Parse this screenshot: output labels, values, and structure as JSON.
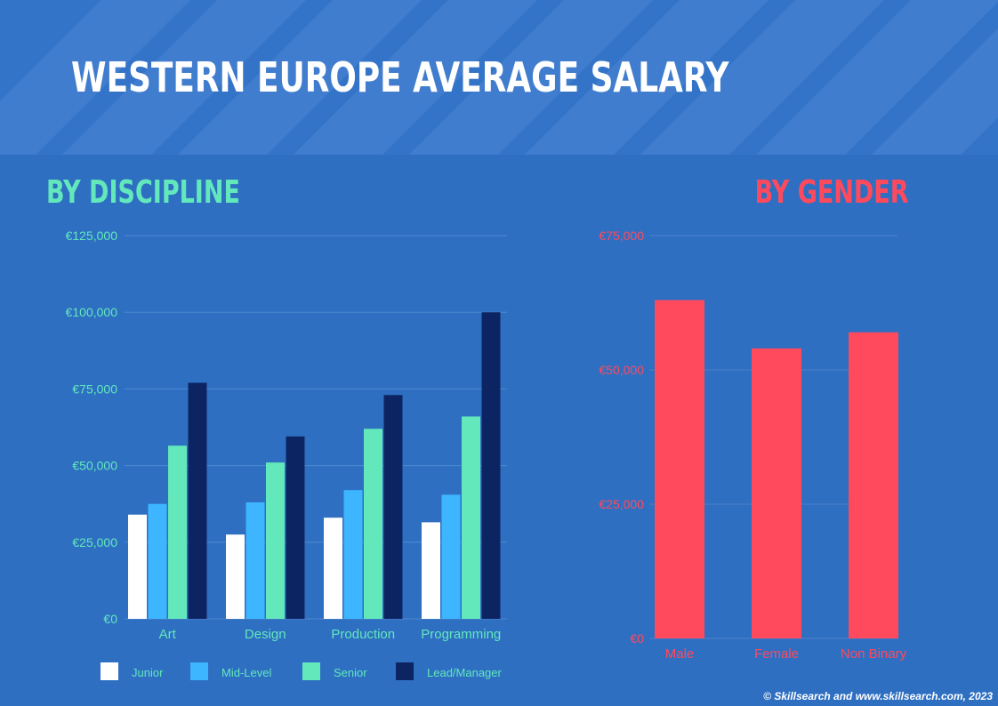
{
  "title": "WESTERN EUROPE AVERAGE SALARY",
  "colors": {
    "background": "#2e6fc2",
    "discipline_accent": "#62e8bb",
    "gender_accent": "#ff4a5e",
    "junior": "#ffffff",
    "mid_level": "#3db5ff",
    "senior": "#62e8bb",
    "lead": "#0d2463",
    "gender_bar": "#ff4a5e"
  },
  "chart_data": [
    {
      "id": "by-discipline",
      "type": "bar",
      "title": "BY DISCIPLINE",
      "categories": [
        "Art",
        "Design",
        "Production",
        "Programming"
      ],
      "series": [
        {
          "name": "Junior",
          "values": [
            34000,
            27500,
            33000,
            31500
          ]
        },
        {
          "name": "Mid-Level",
          "values": [
            37500,
            38000,
            42000,
            40500
          ]
        },
        {
          "name": "Senior",
          "values": [
            56500,
            51000,
            62000,
            66000
          ]
        },
        {
          "name": "Lead/Manager",
          "values": [
            77000,
            59500,
            73000,
            100000
          ]
        }
      ],
      "yticks": [
        "€0",
        "€25,000",
        "€50,000",
        "€75,000",
        "€100,000",
        "€125,000"
      ],
      "ylim": [
        0,
        125000
      ],
      "xlabel": "",
      "ylabel": "",
      "legend_position": "bottom"
    },
    {
      "id": "by-gender",
      "type": "bar",
      "title": "BY GENDER",
      "categories": [
        "Male",
        "Female",
        "Non Binary"
      ],
      "values": [
        63000,
        54000,
        57000
      ],
      "yticks": [
        "€0",
        "€25,000",
        "€50,000",
        "€75,000"
      ],
      "ylim": [
        0,
        75000
      ],
      "xlabel": "",
      "ylabel": ""
    }
  ],
  "footer": "© Skillsearch and www.skillsearch.com, 2023"
}
